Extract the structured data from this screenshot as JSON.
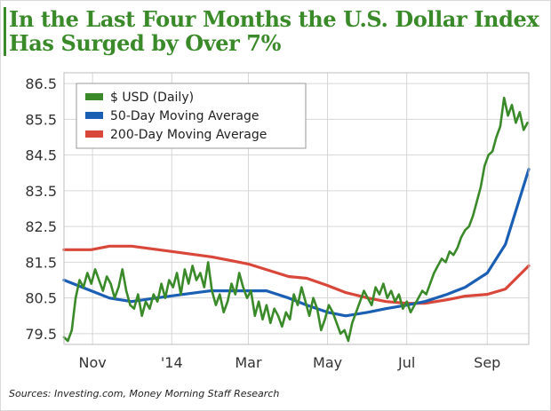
{
  "chart_data": {
    "type": "line",
    "title": "In the Last Four Months the U.S. Dollar Index Has Surged by Over 7%",
    "title_line_1": "In the Last Four Months the U.S. Dollar Index",
    "title_line_2": "Has Surged by Over 7%",
    "source": "Sources: Investing.com, Money Morning Staff Research",
    "xlabel": "",
    "ylabel": "",
    "ylim": [
      79.2,
      86.8
    ],
    "yticks": [
      "86.5",
      "85.5",
      "84.5",
      "83.5",
      "82.5",
      "81.5",
      "80.5",
      "79.5"
    ],
    "xtick_labels": [
      "Nov",
      "'14",
      "Mar",
      "May",
      "Jul",
      "Sep"
    ],
    "xtick_dates": [
      "2013-11-01",
      "2014-01-01",
      "2014-03-01",
      "2014-05-01",
      "2014-07-01",
      "2014-09-01"
    ],
    "xlim": [
      "2013-10-10",
      "2014-10-03"
    ],
    "grid": true,
    "legend_position": "top-left",
    "colors": {
      "usd": "#3a8a2a",
      "ma50": "#1a5fb4",
      "ma200": "#d9473a",
      "grid": "#d6d6d6"
    },
    "series": [
      {
        "name": "$ USD (Daily)",
        "x": [
          "2013-10-10",
          "2013-10-13",
          "2013-10-16",
          "2013-10-19",
          "2013-10-22",
          "2013-10-25",
          "2013-10-28",
          "2013-10-31",
          "2013-11-03",
          "2013-11-06",
          "2013-11-09",
          "2013-11-12",
          "2013-11-15",
          "2013-11-18",
          "2013-11-21",
          "2013-11-24",
          "2013-11-27",
          "2013-11-30",
          "2013-12-03",
          "2013-12-06",
          "2013-12-09",
          "2013-12-12",
          "2013-12-15",
          "2013-12-18",
          "2013-12-21",
          "2013-12-24",
          "2013-12-27",
          "2013-12-30",
          "2014-01-02",
          "2014-01-05",
          "2014-01-08",
          "2014-01-11",
          "2014-01-14",
          "2014-01-17",
          "2014-01-20",
          "2014-01-23",
          "2014-01-26",
          "2014-01-29",
          "2014-02-01",
          "2014-02-04",
          "2014-02-07",
          "2014-02-10",
          "2014-02-13",
          "2014-02-16",
          "2014-02-19",
          "2014-02-22",
          "2014-02-25",
          "2014-02-28",
          "2014-03-03",
          "2014-03-06",
          "2014-03-09",
          "2014-03-12",
          "2014-03-15",
          "2014-03-18",
          "2014-03-21",
          "2014-03-24",
          "2014-03-27",
          "2014-03-30",
          "2014-04-02",
          "2014-04-05",
          "2014-04-08",
          "2014-04-11",
          "2014-04-14",
          "2014-04-17",
          "2014-04-20",
          "2014-04-23",
          "2014-04-26",
          "2014-04-29",
          "2014-05-02",
          "2014-05-05",
          "2014-05-08",
          "2014-05-11",
          "2014-05-14",
          "2014-05-17",
          "2014-05-20",
          "2014-05-23",
          "2014-05-26",
          "2014-05-29",
          "2014-06-01",
          "2014-06-04",
          "2014-06-07",
          "2014-06-10",
          "2014-06-13",
          "2014-06-16",
          "2014-06-19",
          "2014-06-22",
          "2014-06-25",
          "2014-06-28",
          "2014-07-01",
          "2014-07-04",
          "2014-07-07",
          "2014-07-10",
          "2014-07-13",
          "2014-07-16",
          "2014-07-19",
          "2014-07-22",
          "2014-07-25",
          "2014-07-28",
          "2014-07-31",
          "2014-08-03",
          "2014-08-06",
          "2014-08-09",
          "2014-08-12",
          "2014-08-15",
          "2014-08-18",
          "2014-08-21",
          "2014-08-24",
          "2014-08-27",
          "2014-08-30",
          "2014-09-02",
          "2014-09-05",
          "2014-09-08",
          "2014-09-11",
          "2014-09-14",
          "2014-09-17",
          "2014-09-20",
          "2014-09-23",
          "2014-09-26",
          "2014-09-29",
          "2014-10-02"
        ],
        "values": [
          79.4,
          79.3,
          79.6,
          80.5,
          81.0,
          80.8,
          81.2,
          80.9,
          81.3,
          81.0,
          80.7,
          81.1,
          80.9,
          80.5,
          80.8,
          81.3,
          80.7,
          80.3,
          80.2,
          80.6,
          80.0,
          80.4,
          80.2,
          80.6,
          80.4,
          80.9,
          80.5,
          81.0,
          80.8,
          81.2,
          80.6,
          81.3,
          80.9,
          81.4,
          81.0,
          81.2,
          80.8,
          81.5,
          80.7,
          80.3,
          80.6,
          80.1,
          80.4,
          80.9,
          80.6,
          81.2,
          80.8,
          80.5,
          80.7,
          80.0,
          80.4,
          79.9,
          80.3,
          79.8,
          80.2,
          80.0,
          79.7,
          80.1,
          79.9,
          80.6,
          80.3,
          80.8,
          80.4,
          80.0,
          80.5,
          80.2,
          79.6,
          79.9,
          80.3,
          80.1,
          79.8,
          79.5,
          79.6,
          79.3,
          79.8,
          80.1,
          80.4,
          80.7,
          80.5,
          80.3,
          80.8,
          80.6,
          80.9,
          80.5,
          80.7,
          80.4,
          80.6,
          80.2,
          80.4,
          80.1,
          80.3,
          80.5,
          80.7,
          80.6,
          80.9,
          81.2,
          81.4,
          81.6,
          81.5,
          81.8,
          81.7,
          81.9,
          82.2,
          82.4,
          82.5,
          82.8,
          83.2,
          83.6,
          84.2,
          84.5,
          84.6,
          85.0,
          85.3,
          86.1,
          85.6,
          85.9,
          85.4,
          85.7,
          85.2,
          85.4
        ]
      },
      {
        "name": "50-Day Moving Average",
        "x": [
          "2013-10-10",
          "2013-10-31",
          "2013-11-14",
          "2013-12-01",
          "2013-12-20",
          "2014-01-10",
          "2014-01-31",
          "2014-02-14",
          "2014-03-01",
          "2014-03-15",
          "2014-04-01",
          "2014-04-15",
          "2014-05-01",
          "2014-05-15",
          "2014-06-01",
          "2014-06-15",
          "2014-07-01",
          "2014-07-15",
          "2014-08-01",
          "2014-08-15",
          "2014-09-01",
          "2014-09-15",
          "2014-10-03"
        ],
        "values": [
          81.0,
          80.7,
          80.5,
          80.4,
          80.5,
          80.6,
          80.7,
          80.7,
          80.7,
          80.7,
          80.5,
          80.3,
          80.1,
          80.0,
          80.1,
          80.2,
          80.3,
          80.4,
          80.6,
          80.8,
          81.2,
          82.0,
          84.1
        ]
      },
      {
        "name": "200-Day Moving Average",
        "x": [
          "2013-10-10",
          "2013-10-31",
          "2013-11-14",
          "2013-12-01",
          "2014-01-01",
          "2014-02-01",
          "2014-03-01",
          "2014-04-01",
          "2014-04-15",
          "2014-05-01",
          "2014-05-15",
          "2014-06-01",
          "2014-06-15",
          "2014-07-01",
          "2014-07-15",
          "2014-08-01",
          "2014-08-15",
          "2014-09-01",
          "2014-09-15",
          "2014-10-03"
        ],
        "values": [
          81.85,
          81.85,
          81.95,
          81.95,
          81.8,
          81.65,
          81.45,
          81.1,
          81.05,
          80.85,
          80.65,
          80.5,
          80.4,
          80.35,
          80.35,
          80.45,
          80.55,
          80.6,
          80.75,
          81.4
        ]
      }
    ]
  }
}
